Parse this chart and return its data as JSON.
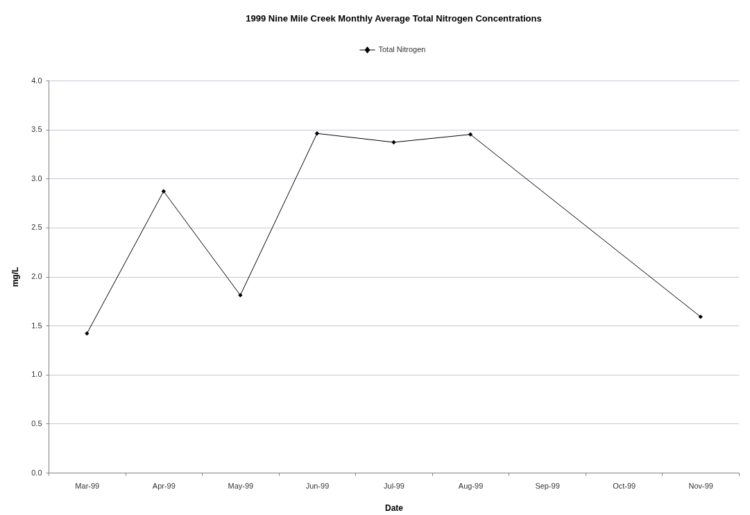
{
  "chart_data": {
    "type": "line",
    "title": "1999 Nine Mile Creek Monthly Average Total Nitrogen Concentrations",
    "xlabel": "Date",
    "ylabel": "mg/L",
    "categories": [
      "Mar-99",
      "Apr-99",
      "May-99",
      "Jun-99",
      "Jul-99",
      "Aug-99",
      "Sep-99",
      "Oct-99",
      "Nov-99"
    ],
    "series": [
      {
        "name": "Total Nitrogen",
        "color": "#000000",
        "values": [
          1.42,
          2.87,
          1.81,
          3.46,
          3.37,
          3.45,
          null,
          null,
          1.59
        ]
      }
    ],
    "ylim": [
      0,
      4
    ],
    "yticks": [
      {
        "value": 0,
        "label": "0.0"
      },
      0.5,
      {
        "value": 1,
        "label": "1.0"
      },
      1.5,
      {
        "value": 2,
        "label": "2.0"
      },
      2.5,
      {
        "value": 3,
        "label": "3.0"
      },
      3.5,
      {
        "value": 4,
        "label": "4.0"
      }
    ],
    "grid": "y",
    "legend": "top",
    "marker": "diamond",
    "line_style": "solid"
  }
}
